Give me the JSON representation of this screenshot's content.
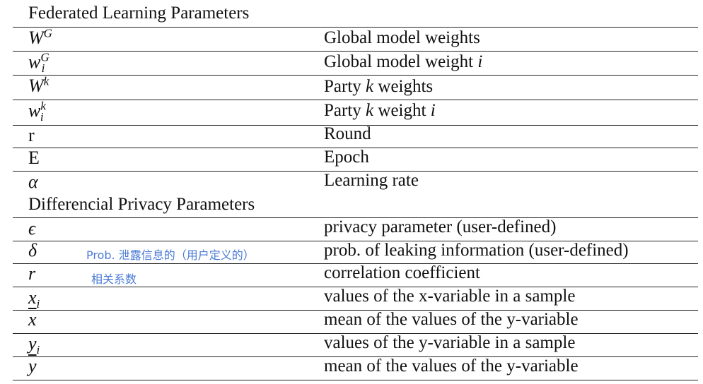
{
  "sections": [
    {
      "title": "Federated Learning Parameters",
      "rows": [
        {
          "symbol": "W",
          "sup": "G",
          "sub": "",
          "desc": [
            "Global model weights"
          ]
        },
        {
          "symbol": "w",
          "sup": "G",
          "sub": "i",
          "desc": [
            "Global model weight ",
            "i"
          ]
        },
        {
          "symbol": "W",
          "sup": "k",
          "sub": "",
          "desc": [
            "Party ",
            "k",
            " weights"
          ]
        },
        {
          "symbol": "w",
          "sup": "k",
          "sub": "i",
          "desc": [
            "Party ",
            "k",
            " weight ",
            "i"
          ]
        },
        {
          "symbol": "r",
          "sup": "",
          "sub": "",
          "desc": [
            "Round"
          ]
        },
        {
          "symbol": "E",
          "sup": "",
          "sub": "",
          "desc": [
            "Epoch"
          ]
        },
        {
          "symbol": "α",
          "sup": "",
          "sub": "",
          "desc": [
            "Learning rate"
          ]
        }
      ]
    },
    {
      "title": "Differencial Privacy Parameters",
      "rows": [
        {
          "symbol": "ϵ",
          "sup": "",
          "sub": "",
          "desc": [
            "privacy parameter (user-defined)"
          ]
        },
        {
          "symbol": "δ",
          "sup": "",
          "sub": "",
          "desc": [
            "prob. of leaking information (user-defined)"
          ]
        },
        {
          "symbol": "r",
          "sup": "",
          "sub": "",
          "desc": [
            "correlation coefficient"
          ]
        },
        {
          "symbol": "x",
          "sup": "",
          "sub": "i",
          "desc": [
            "values of the x-variable in a sample"
          ]
        },
        {
          "symbol": "x",
          "sup": "",
          "sub": "",
          "desc": [
            "mean of the values of the y-variable"
          ]
        },
        {
          "symbol": "y",
          "sup": "",
          "sub": "i",
          "desc": [
            "values of the y-variable in a sample"
          ]
        },
        {
          "symbol": "y",
          "sup": "",
          "sub": "",
          "desc": [
            "mean of the values of the y-variable"
          ]
        }
      ]
    }
  ],
  "annotations": {
    "delta_note": "Prob. 泄露信息的（用户定义的）",
    "r_note": "相关系数"
  }
}
